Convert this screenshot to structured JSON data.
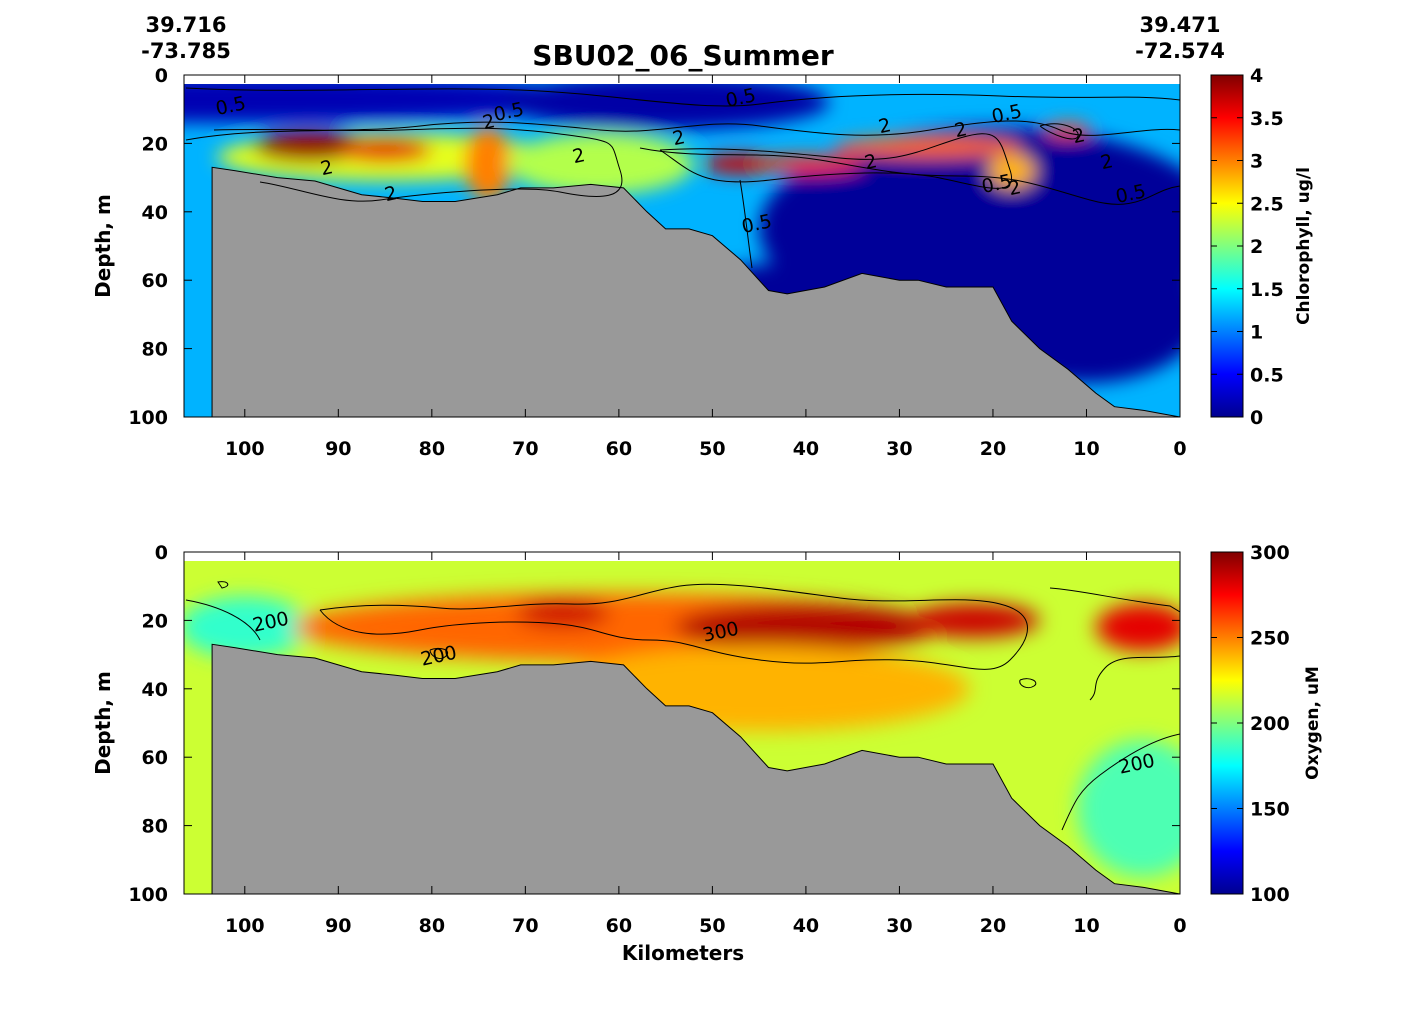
{
  "title": "SBU02_06_Summer",
  "coords": {
    "left_lat": "39.716",
    "left_lon": "-73.785",
    "right_lat": "39.471",
    "right_lon": "-72.574"
  },
  "xlabel": "Kilometers",
  "chart_data": [
    {
      "type": "heatmap",
      "name": "chlorophyll-section",
      "ylabel": "Depth, m",
      "colorbar_label": "Chlorophyll, ug/l",
      "colormap": "jet",
      "xlim": [
        106.5,
        0
      ],
      "ylim": [
        0,
        100
      ],
      "xticks": [
        "100",
        "90",
        "80",
        "70",
        "60",
        "50",
        "40",
        "30",
        "20",
        "10",
        "0"
      ],
      "yticks": [
        "0",
        "20",
        "40",
        "60",
        "80",
        "100"
      ],
      "clim": [
        0,
        4
      ],
      "colorbar_ticks": [
        "0",
        "0.5",
        "1",
        "1.5",
        "2",
        "2.5",
        "3",
        "3.5",
        "4"
      ],
      "contour_labels": [
        "0.5",
        "0.5",
        "0.5",
        "0.5",
        "0.5",
        "0.5",
        "0.5",
        "2",
        "2",
        "2",
        "2",
        "2",
        "2",
        "2",
        "2",
        "2",
        "2",
        "2"
      ],
      "background_value": 1.2,
      "features": [
        {
          "x": 100,
          "depth": 7,
          "width": 80,
          "height": 14,
          "value": 0.2
        },
        {
          "x": 55,
          "depth": 8,
          "width": 35,
          "height": 16,
          "value": 0.15
        },
        {
          "x": 20,
          "depth": 45,
          "width": 50,
          "height": 60,
          "value": 0.1
        },
        {
          "x": 40,
          "depth": 70,
          "width": 40,
          "height": 30,
          "value": 0.1
        },
        {
          "x": 10,
          "depth": 70,
          "width": 25,
          "height": 40,
          "value": 0.1
        },
        {
          "x": 85,
          "depth": 24,
          "width": 36,
          "height": 14,
          "value": 2.4
        },
        {
          "x": 93,
          "depth": 21,
          "width": 12,
          "height": 9,
          "value": 3.9
        },
        {
          "x": 85,
          "depth": 22,
          "width": 10,
          "height": 7,
          "value": 3.6
        },
        {
          "x": 74,
          "depth": 26,
          "width": 5,
          "height": 22,
          "value": 3.0
        },
        {
          "x": 62,
          "depth": 26,
          "width": 20,
          "height": 18,
          "value": 2.2
        },
        {
          "x": 47,
          "depth": 26,
          "width": 8,
          "height": 6,
          "value": 3.7
        },
        {
          "x": 40,
          "depth": 26,
          "width": 12,
          "height": 5,
          "value": 3.3
        },
        {
          "x": 27,
          "depth": 21,
          "width": 20,
          "height": 6,
          "value": 3.1
        },
        {
          "x": 18,
          "depth": 28,
          "width": 5,
          "height": 10,
          "value": 2.8
        },
        {
          "x": 12,
          "depth": 16,
          "width": 5,
          "height": 4,
          "value": 3.2
        }
      ]
    },
    {
      "type": "heatmap",
      "name": "oxygen-section",
      "ylabel": "Depth, m",
      "colorbar_label": "Oxygen, uM",
      "colormap": "jet",
      "xlim": [
        106.5,
        0
      ],
      "ylim": [
        0,
        100
      ],
      "xticks": [
        "100",
        "90",
        "80",
        "70",
        "60",
        "50",
        "40",
        "30",
        "20",
        "10",
        "0"
      ],
      "yticks": [
        "0",
        "20",
        "40",
        "60",
        "80",
        "100"
      ],
      "clim": [
        100,
        300
      ],
      "colorbar_ticks": [
        "100",
        "150",
        "200",
        "250",
        "300"
      ],
      "contour_labels": [
        "200",
        "200",
        "200",
        "300"
      ],
      "background_value": 215,
      "features": [
        {
          "x": 100,
          "depth": 22,
          "width": 14,
          "height": 18,
          "value": 185
        },
        {
          "x": 60,
          "depth": 22,
          "width": 70,
          "height": 20,
          "value": 255
        },
        {
          "x": 40,
          "depth": 22,
          "width": 28,
          "height": 14,
          "value": 290
        },
        {
          "x": 66,
          "depth": 18,
          "width": 10,
          "height": 8,
          "value": 285
        },
        {
          "x": 22,
          "depth": 20,
          "width": 14,
          "height": 10,
          "value": 285
        },
        {
          "x": 4,
          "depth": 22,
          "width": 10,
          "height": 14,
          "value": 280
        },
        {
          "x": 45,
          "depth": 40,
          "width": 45,
          "height": 25,
          "value": 240
        },
        {
          "x": 4,
          "depth": 75,
          "width": 14,
          "height": 40,
          "value": 190
        }
      ]
    }
  ]
}
